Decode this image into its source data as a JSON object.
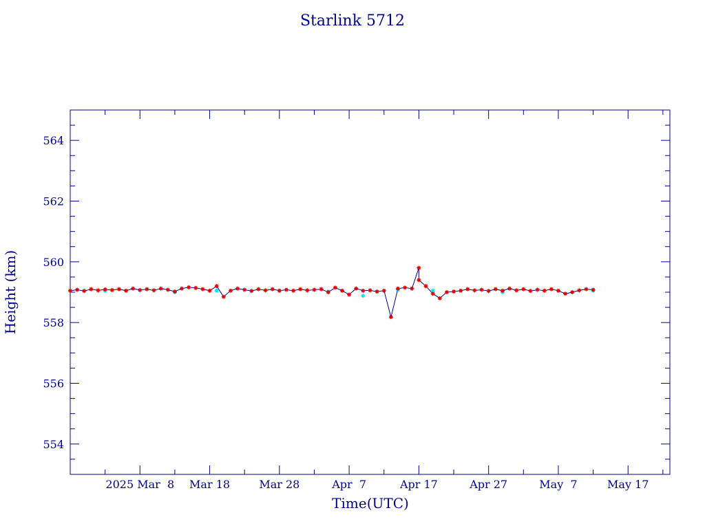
{
  "chart_data": {
    "type": "scatter",
    "title": "Starlink 5712",
    "xlabel": "Time(UTC)",
    "ylabel": "Height (km)",
    "xlim": [
      "2025-02-26",
      "2025-05-23"
    ],
    "ylim": [
      553.0,
      565.0
    ],
    "x_ticks": [
      {
        "date": "2025-03-08",
        "label": "2025 Mar  8"
      },
      {
        "date": "2025-03-18",
        "label": "Mar 18"
      },
      {
        "date": "2025-03-28",
        "label": "Mar 28"
      },
      {
        "date": "2025-04-07",
        "label": "Apr  7"
      },
      {
        "date": "2025-04-17",
        "label": "Apr 17"
      },
      {
        "date": "2025-04-27",
        "label": "Apr 27"
      },
      {
        "date": "2025-05-07",
        "label": "May  7"
      },
      {
        "date": "2025-05-17",
        "label": "May 17"
      }
    ],
    "y_ticks": [
      554,
      556,
      558,
      560,
      562,
      564
    ],
    "grid": false,
    "colors": {
      "axes": "#00008b",
      "line": "#00008b",
      "points": "#dd0000",
      "secondary_points": "#00e5ee"
    },
    "series": [
      {
        "points": [
          [
            "2025-02-26",
            559.05
          ],
          [
            "2025-02-27",
            559.08
          ],
          [
            "2025-02-28",
            559.04
          ],
          [
            "2025-03-01",
            559.1
          ],
          [
            "2025-03-02",
            559.06
          ],
          [
            "2025-03-03",
            559.09
          ],
          [
            "2025-03-04",
            559.07
          ],
          [
            "2025-03-05",
            559.1
          ],
          [
            "2025-03-06",
            559.05
          ],
          [
            "2025-03-07",
            559.12
          ],
          [
            "2025-03-08",
            559.07
          ],
          [
            "2025-03-09",
            559.1
          ],
          [
            "2025-03-10",
            559.06
          ],
          [
            "2025-03-11",
            559.12
          ],
          [
            "2025-03-12",
            559.08
          ],
          [
            "2025-03-13",
            559.02
          ],
          [
            "2025-03-14",
            559.12
          ],
          [
            "2025-03-15",
            559.16
          ],
          [
            "2025-03-16",
            559.14
          ],
          [
            "2025-03-17",
            559.1
          ],
          [
            "2025-03-18",
            559.05
          ],
          [
            "2025-03-19",
            559.2
          ],
          [
            "2025-03-20",
            558.85
          ],
          [
            "2025-03-21",
            559.05
          ],
          [
            "2025-03-22",
            559.12
          ],
          [
            "2025-03-23",
            559.08
          ],
          [
            "2025-03-24",
            559.04
          ],
          [
            "2025-03-25",
            559.1
          ],
          [
            "2025-03-26",
            559.06
          ],
          [
            "2025-03-27",
            559.1
          ],
          [
            "2025-03-28",
            559.05
          ],
          [
            "2025-03-29",
            559.08
          ],
          [
            "2025-03-30",
            559.05
          ],
          [
            "2025-03-31",
            559.1
          ],
          [
            "2025-04-01",
            559.06
          ],
          [
            "2025-04-02",
            559.08
          ],
          [
            "2025-04-03",
            559.1
          ],
          [
            "2025-04-04",
            559.0
          ],
          [
            "2025-04-05",
            559.15
          ],
          [
            "2025-04-06",
            559.05
          ],
          [
            "2025-04-07",
            558.92
          ],
          [
            "2025-04-08",
            559.12
          ],
          [
            "2025-04-09",
            559.05
          ],
          [
            "2025-04-10",
            559.06
          ],
          [
            "2025-04-11",
            559.02
          ],
          [
            "2025-04-12",
            559.05
          ],
          [
            "2025-04-13",
            558.18
          ],
          [
            "2025-04-14",
            559.12
          ],
          [
            "2025-04-15",
            559.15
          ],
          [
            "2025-04-16",
            559.12
          ],
          [
            "2025-04-17",
            559.8
          ],
          [
            "2025-04-17",
            559.4
          ],
          [
            "2025-04-18",
            559.2
          ],
          [
            "2025-04-19",
            558.95
          ],
          [
            "2025-04-20",
            558.8
          ],
          [
            "2025-04-21",
            559.0
          ],
          [
            "2025-04-22",
            559.02
          ],
          [
            "2025-04-23",
            559.05
          ],
          [
            "2025-04-24",
            559.1
          ],
          [
            "2025-04-25",
            559.06
          ],
          [
            "2025-04-26",
            559.08
          ],
          [
            "2025-04-27",
            559.04
          ],
          [
            "2025-04-28",
            559.1
          ],
          [
            "2025-04-29",
            559.05
          ],
          [
            "2025-04-30",
            559.12
          ],
          [
            "2025-05-01",
            559.06
          ],
          [
            "2025-05-02",
            559.1
          ],
          [
            "2025-05-03",
            559.04
          ],
          [
            "2025-05-04",
            559.08
          ],
          [
            "2025-05-05",
            559.05
          ],
          [
            "2025-05-06",
            559.1
          ],
          [
            "2025-05-07",
            559.05
          ],
          [
            "2025-05-08",
            558.95
          ],
          [
            "2025-05-09",
            559.0
          ],
          [
            "2025-05-10",
            559.06
          ],
          [
            "2025-05-11",
            559.1
          ],
          [
            "2025-05-12",
            559.08
          ]
        ]
      },
      {
        "points": [
          [
            "2025-03-03",
            559.05
          ],
          [
            "2025-03-13",
            559.0
          ],
          [
            "2025-03-19",
            559.05
          ],
          [
            "2025-03-28",
            559.05
          ],
          [
            "2025-04-04",
            559.02
          ],
          [
            "2025-04-09",
            558.88
          ],
          [
            "2025-04-14",
            559.08
          ],
          [
            "2025-04-19",
            559.05
          ],
          [
            "2025-04-29",
            559.0
          ],
          [
            "2025-05-12",
            559.05
          ]
        ]
      }
    ]
  }
}
